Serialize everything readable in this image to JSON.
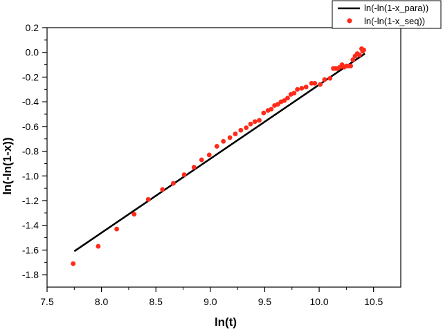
{
  "chart_data": {
    "type": "scatter",
    "title": "",
    "xlabel": "ln(t)",
    "ylabel": "ln(-ln(1-x))",
    "xlim": [
      7.5,
      10.75
    ],
    "ylim": [
      -1.9,
      0.2
    ],
    "x_ticks": [
      "7.5",
      "8.0",
      "8.5",
      "9.0",
      "9.5",
      "10.0",
      "10.5"
    ],
    "y_ticks": [
      "0.2",
      "0.0",
      "-0.2",
      "-0.4",
      "-0.6",
      "-0.8",
      "-1.0",
      "-1.2",
      "-1.4",
      "-1.6",
      "-1.8"
    ],
    "grid": false,
    "legend_position": "top-right",
    "series": [
      {
        "name": "ln(-ln(1-x_para))",
        "kind": "line",
        "color": "#000000",
        "x": [
          7.75,
          10.42
        ],
        "y": [
          -1.61,
          -0.01
        ]
      },
      {
        "name": "ln(-ln(1-x_seq))",
        "kind": "scatter",
        "color": "#ff2a1a",
        "x": [
          7.74,
          7.97,
          8.14,
          8.3,
          8.43,
          8.56,
          8.66,
          8.76,
          8.85,
          8.92,
          8.99,
          9.06,
          9.12,
          9.18,
          9.23,
          9.28,
          9.33,
          9.37,
          9.41,
          9.45,
          9.49,
          9.53,
          9.56,
          9.59,
          9.62,
          9.65,
          9.68,
          9.71,
          9.74,
          9.77,
          9.8,
          9.84,
          9.88,
          9.93,
          9.96,
          10.01,
          10.05,
          10.1,
          10.13,
          10.15,
          10.17,
          10.19,
          10.21,
          10.23,
          10.25,
          10.27,
          10.29,
          10.31,
          10.33,
          10.35,
          10.37,
          10.39,
          10.4,
          10.41
        ],
        "y": [
          -1.71,
          -1.57,
          -1.43,
          -1.31,
          -1.19,
          -1.11,
          -1.06,
          -0.99,
          -0.93,
          -0.87,
          -0.83,
          -0.76,
          -0.72,
          -0.69,
          -0.66,
          -0.63,
          -0.61,
          -0.58,
          -0.56,
          -0.55,
          -0.49,
          -0.47,
          -0.46,
          -0.43,
          -0.42,
          -0.4,
          -0.39,
          -0.37,
          -0.34,
          -0.33,
          -0.3,
          -0.29,
          -0.28,
          -0.25,
          -0.25,
          -0.26,
          -0.22,
          -0.21,
          -0.13,
          -0.13,
          -0.13,
          -0.12,
          -0.1,
          -0.12,
          -0.11,
          -0.11,
          -0.11,
          -0.06,
          -0.03,
          -0.01,
          -0.02,
          0.03,
          0.01,
          0.02
        ]
      }
    ]
  }
}
